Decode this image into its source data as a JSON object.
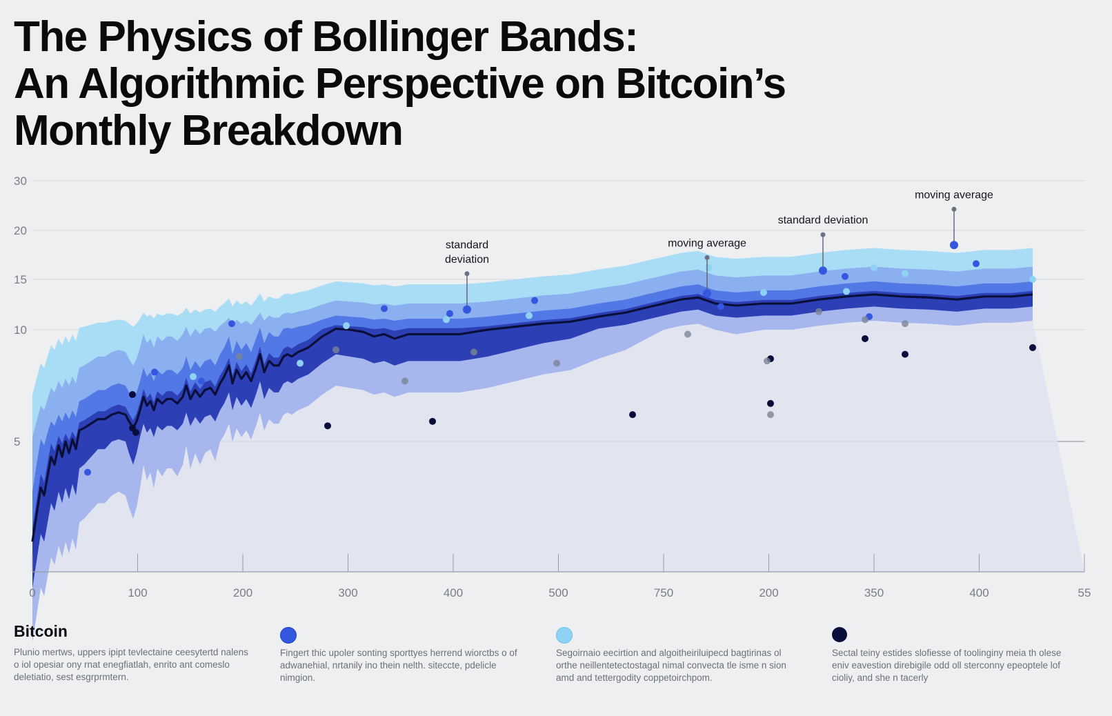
{
  "title_lines": [
    "The Physics of Bollinger Bands:",
    "An Algorithmic Perspective on Bitcoin’s",
    "Monthly Breakdown"
  ],
  "colors": {
    "background": "#eeeff1",
    "base_fill": "#dfe2ef",
    "outer_band": "#a9dcf5",
    "mid_band": "#8ab0ef",
    "inner_band": "#5278e6",
    "core_band": "#2d3fb5",
    "lower_band": "#a7b6ed",
    "price_line": "#0a0f3a",
    "grid": "#d5d7db",
    "axis": "#9a9ca3",
    "dot_blue": "#3457e0",
    "dot_sky": "#8fd3f4",
    "dot_navy": "#0a0d3a",
    "dot_grey": "#7d8595"
  },
  "chart_data": {
    "type": "area",
    "y_ticks": [
      "30",
      "20",
      "15",
      "10",
      "5"
    ],
    "x_tick_labels": [
      "0",
      "100",
      "200",
      "300",
      "400",
      "500",
      "750",
      "200",
      "350",
      "400",
      "55"
    ],
    "bitcoin_price": [
      [
        0,
        2.4
      ],
      [
        6,
        3.1
      ],
      [
        12,
        3.8
      ],
      [
        17,
        3.6
      ],
      [
        22,
        4.1
      ],
      [
        27,
        4.6
      ],
      [
        32,
        4.4
      ],
      [
        38,
        4.9
      ],
      [
        43,
        4.6
      ],
      [
        48,
        5.0
      ],
      [
        53,
        4.7
      ],
      [
        58,
        5.1
      ],
      [
        63,
        4.8
      ],
      [
        68,
        5.5
      ],
      [
        75,
        5.6
      ],
      [
        85,
        5.8
      ],
      [
        95,
        6.0
      ],
      [
        105,
        6.0
      ],
      [
        115,
        6.2
      ],
      [
        125,
        6.3
      ],
      [
        135,
        6.2
      ],
      [
        140,
        5.9
      ],
      [
        146,
        5.6
      ],
      [
        151,
        5.9
      ],
      [
        156,
        6.4
      ],
      [
        161,
        7.0
      ],
      [
        166,
        6.6
      ],
      [
        171,
        6.8
      ],
      [
        176,
        6.4
      ],
      [
        181,
        6.9
      ],
      [
        188,
        6.7
      ],
      [
        195,
        6.9
      ],
      [
        202,
        6.9
      ],
      [
        210,
        6.7
      ],
      [
        218,
        7.0
      ],
      [
        223,
        7.5
      ],
      [
        229,
        6.9
      ],
      [
        236,
        7.3
      ],
      [
        243,
        7.0
      ],
      [
        250,
        7.3
      ],
      [
        258,
        7.4
      ],
      [
        265,
        7.1
      ],
      [
        272,
        7.6
      ],
      [
        278,
        7.9
      ],
      [
        285,
        8.4
      ],
      [
        290,
        7.6
      ],
      [
        296,
        8.2
      ],
      [
        303,
        7.8
      ],
      [
        310,
        8.1
      ],
      [
        317,
        7.7
      ],
      [
        324,
        8.3
      ],
      [
        330,
        8.9
      ],
      [
        336,
        8.1
      ],
      [
        343,
        8.6
      ],
      [
        350,
        8.4
      ],
      [
        357,
        8.4
      ],
      [
        364,
        8.8
      ],
      [
        370,
        8.9
      ],
      [
        376,
        8.8
      ],
      [
        385,
        9.0
      ],
      [
        400,
        9.2
      ],
      [
        420,
        9.7
      ],
      [
        440,
        10.1
      ],
      [
        460,
        10.0
      ],
      [
        480,
        9.9
      ],
      [
        495,
        9.7
      ],
      [
        510,
        9.8
      ],
      [
        525,
        9.6
      ],
      [
        545,
        9.8
      ],
      [
        580,
        9.8
      ],
      [
        620,
        9.8
      ],
      [
        660,
        10.0
      ],
      [
        700,
        10.3
      ],
      [
        740,
        10.6
      ],
      [
        780,
        10.8
      ],
      [
        820,
        11.3
      ],
      [
        860,
        11.7
      ],
      [
        890,
        12.2
      ],
      [
        915,
        12.6
      ],
      [
        940,
        13.0
      ],
      [
        965,
        13.2
      ],
      [
        990,
        12.6
      ],
      [
        1020,
        12.4
      ],
      [
        1060,
        12.6
      ],
      [
        1100,
        12.6
      ],
      [
        1140,
        13.0
      ],
      [
        1180,
        13.3
      ],
      [
        1220,
        13.5
      ],
      [
        1260,
        13.3
      ],
      [
        1300,
        13.2
      ],
      [
        1340,
        13.0
      ],
      [
        1380,
        13.3
      ],
      [
        1420,
        13.3
      ],
      [
        1450,
        13.5
      ]
    ],
    "bands": {
      "outer_upper_offset": 4.7,
      "mid_upper_offset": 2.8,
      "inner_upper_offset": 1.3,
      "inner_lower_offset": 1.2,
      "lower_offset": 2.6
    },
    "scatter": {
      "blue": [
        [
          245,
          7.7
        ],
        [
          80,
          4.2
        ],
        [
          289,
          10.6
        ],
        [
          177,
          8.1
        ],
        [
          510,
          12.1
        ],
        [
          605,
          11.6
        ],
        [
          728,
          12.9
        ],
        [
          1178,
          15.3
        ],
        [
          1368,
          16.6
        ],
        [
          998,
          12.3
        ],
        [
          1213,
          11.3
        ]
      ],
      "sky": [
        [
          980,
          16.2
        ],
        [
          1220,
          16.2
        ],
        [
          1450,
          15.0
        ],
        [
          1265,
          15.6
        ],
        [
          1180,
          13.8
        ],
        [
          1060,
          13.7
        ],
        [
          720,
          11.4
        ],
        [
          600,
          11.0
        ],
        [
          455,
          10.4
        ],
        [
          388,
          8.5
        ],
        [
          233,
          7.9
        ]
      ],
      "navy": [
        [
          1070,
          6.7
        ],
        [
          1207,
          9.6
        ],
        [
          1265,
          8.9
        ],
        [
          1450,
          9.2
        ],
        [
          1070,
          8.7
        ],
        [
          870,
          6.2
        ],
        [
          580,
          5.9
        ],
        [
          428,
          5.7
        ],
        [
          150,
          5.4
        ],
        [
          145,
          7.1
        ],
        [
          145,
          5.6
        ]
      ],
      "grey": [
        [
          300,
          8.8
        ],
        [
          440,
          9.1
        ],
        [
          540,
          7.7
        ],
        [
          950,
          9.8
        ],
        [
          1065,
          8.6
        ],
        [
          1070,
          6.2
        ],
        [
          1140,
          11.8
        ],
        [
          1207,
          11.0
        ],
        [
          1265,
          10.6
        ],
        [
          760,
          8.5
        ],
        [
          640,
          9.0
        ]
      ]
    },
    "annotations": [
      {
        "label_lines": [
          "standard",
          "deviation"
        ],
        "x": 630,
        "y": 12.0
      },
      {
        "label_lines": [
          "moving average"
        ],
        "x": 978,
        "y": 13.6
      },
      {
        "label_lines": [
          "standard deviation"
        ],
        "x": 1146,
        "y": 15.9
      },
      {
        "label_lines": [
          "moving average"
        ],
        "x": 1336,
        "y": 18.5
      }
    ]
  },
  "legend": [
    {
      "name": "Bitcoin",
      "color": "",
      "text": "Plunio mertws, uppers ipipt tevlectaine ceesytertd nalens o iol opesiar ony rnat enegfiatlah, enrito ant comeslo deletiatio, sest esgrprmtern."
    },
    {
      "name": "",
      "color": "#3457e0",
      "text": "Fingert thic upoler sonting sporttyes herrend wiorctbs o of adwanehial, nrtanily ino thein nelth. siteccte, pdelicle nimgion."
    },
    {
      "name": "",
      "color": "#8fd3f4",
      "text": "Segoirnaio eecirtion and algoitheiriluipecd bagtirinas ol orthe neillentetectostagal nimal convecta tle isme n sion amd and tettergodity coppetoirchpom."
    },
    {
      "name": "",
      "color": "#0a0d3a",
      "text": "Sectal teiny estides slofiesse of toolinginy meia th olese eniv eavestion direbigile odd oll sterconny epeoptele lof cioliy, and she n tacerly"
    }
  ]
}
